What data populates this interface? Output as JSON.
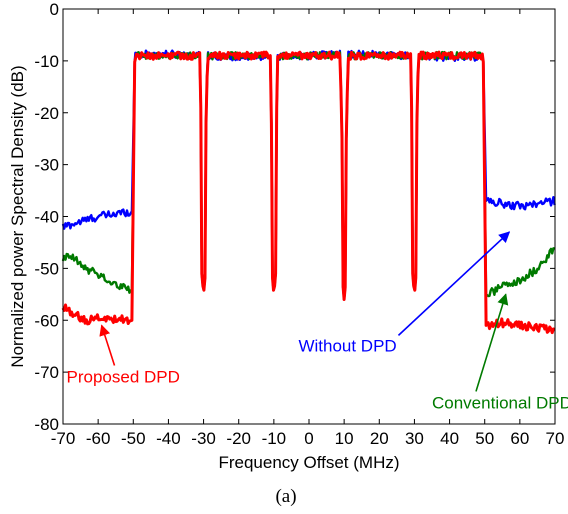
{
  "chart_data": {
    "type": "line",
    "title": "",
    "caption": "(a)",
    "xlabel": "Frequency Offset (MHz)",
    "ylabel": "Normalized  power Spectral Density (dB)",
    "xlim": [
      -70,
      70
    ],
    "ylim": [
      -80,
      0
    ],
    "xticks": [
      -70,
      -60,
      -50,
      -40,
      -30,
      -20,
      -10,
      0,
      10,
      20,
      30,
      40,
      50,
      60,
      70
    ],
    "yticks": [
      0,
      -10,
      -20,
      -30,
      -40,
      -50,
      -60,
      -70,
      -80
    ],
    "grid": false,
    "carriers": [
      {
        "start": -49.5,
        "end": -30.5
      },
      {
        "start": -29.5,
        "end": -10.5
      },
      {
        "start": -9.5,
        "end": 9.5
      },
      {
        "start": 10.5,
        "end": 29.5
      },
      {
        "start": 30.5,
        "end": 49.5
      }
    ],
    "notch_depths": [
      {
        "x": -30,
        "y": -55
      },
      {
        "x": -10,
        "y": -55
      },
      {
        "x": 10,
        "y": -56
      },
      {
        "x": 30,
        "y": -55
      }
    ],
    "series": [
      {
        "key": "without",
        "color": "#0000ff",
        "inband": -9.0,
        "left_oob": [
          [
            -70,
            -42
          ],
          [
            -65,
            -41
          ],
          [
            -60,
            -40
          ],
          [
            -55,
            -39.5
          ],
          [
            -51,
            -39
          ]
        ],
        "right_oob": [
          [
            51,
            -37
          ],
          [
            55,
            -37.5
          ],
          [
            60,
            -38
          ],
          [
            65,
            -37.5
          ],
          [
            70,
            -37
          ]
        ]
      },
      {
        "key": "conventional",
        "color": "#007a00",
        "inband": -9.0,
        "left_oob": [
          [
            -70,
            -48
          ],
          [
            -67,
            -48
          ],
          [
            -64,
            -50
          ],
          [
            -60,
            -51
          ],
          [
            -56,
            -53
          ],
          [
            -51,
            -54
          ]
        ],
        "right_oob": [
          [
            51,
            -55
          ],
          [
            55,
            -53.5
          ],
          [
            60,
            -52.5
          ],
          [
            65,
            -50
          ],
          [
            70,
            -46
          ]
        ]
      },
      {
        "key": "proposed",
        "color": "#ff0000",
        "inband": -9.0,
        "left_oob": [
          [
            -70,
            -57.5
          ],
          [
            -67,
            -59
          ],
          [
            -63,
            -60
          ],
          [
            -58,
            -59.5
          ],
          [
            -51,
            -60
          ]
        ],
        "right_oob": [
          [
            51,
            -61
          ],
          [
            55,
            -60.5
          ],
          [
            60,
            -61
          ],
          [
            65,
            -61.5
          ],
          [
            70,
            -62
          ]
        ]
      }
    ],
    "annotations": [
      {
        "text": "Without DPD",
        "color": "#0000ff",
        "text_at": [
          -3,
          -66
        ],
        "arrow_to": [
          57,
          -43
        ]
      },
      {
        "text": "Proposed DPD",
        "color": "#ff0000",
        "text_at": [
          -69,
          -72
        ],
        "arrow_to": [
          -59,
          -61
        ]
      },
      {
        "text": "Conventional DPD",
        "color": "#007a00",
        "text_at": [
          35,
          -77
        ],
        "arrow_to": [
          56,
          -55
        ]
      }
    ]
  }
}
